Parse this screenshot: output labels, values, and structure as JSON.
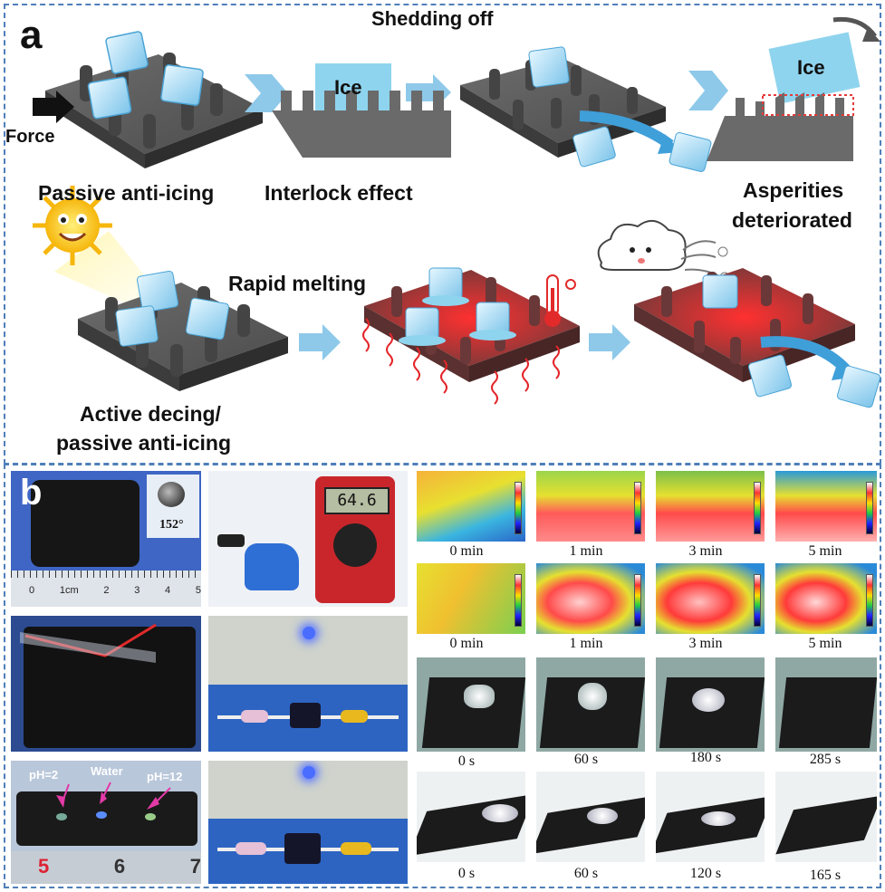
{
  "panel_a": {
    "letter": "a",
    "force_label": "Force",
    "ice_label_1": "Ice",
    "ice_label_2": "Ice",
    "shedding": "Shedding off",
    "passive": "Passive anti-icing",
    "interlock": "Interlock effect",
    "asperities_1": "Asperities",
    "asperities_2": "deteriorated",
    "rapid": "Rapid melting",
    "active_1": "Active decing/",
    "active_2": "passive anti-icing"
  },
  "panel_b": {
    "letter": "b",
    "contact_angle": "152°",
    "ruler_marks": [
      "0",
      "1cm",
      "2",
      "3",
      "4",
      "5"
    ],
    "multimeter_reading": "64.6",
    "ph_labels": [
      "pH=2",
      "Water",
      "pH=12"
    ],
    "ruler2_marks": [
      "5",
      "6",
      "7"
    ],
    "thermal_row1": [
      "0 min",
      "1 min",
      "3 min",
      "5 min"
    ],
    "thermal_row2": [
      "0 min",
      "1 min",
      "3 min",
      "5 min"
    ],
    "melt_row1": [
      "0 s",
      "60 s",
      "180 s",
      "285 s"
    ],
    "melt_row2": [
      "0 s",
      "60 s",
      "120 s",
      "165 s"
    ]
  },
  "colors": {
    "border": "#4f7fb8",
    "arrow": "#8ec9ea",
    "surface": "#5a5a5a",
    "heated": "#d9302a"
  }
}
